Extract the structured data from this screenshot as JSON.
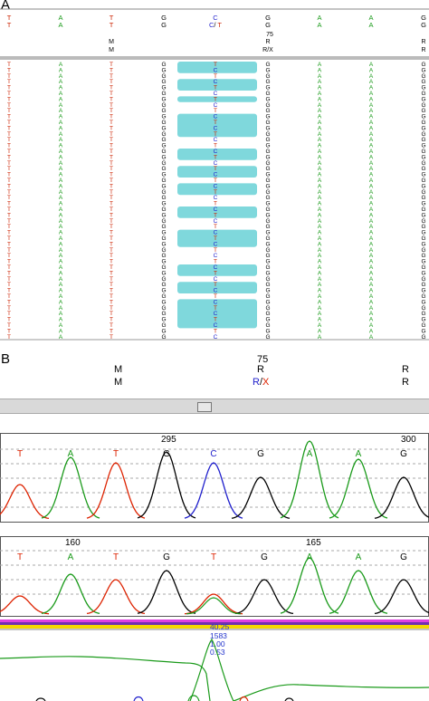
{
  "panels": {
    "a": "A",
    "b": "B"
  },
  "alignment": {
    "header_rows": [
      {
        "cols": [
          "T",
          "A",
          "T",
          "G",
          "C",
          "G",
          "A",
          "A",
          "G"
        ]
      },
      {
        "cols": [
          "T",
          "A",
          "T",
          "G",
          "C/ T",
          "G",
          "A",
          "A",
          "G"
        ]
      }
    ],
    "position_label": "75",
    "ambiguity_rows": [
      {
        "col3": "M",
        "col6": "R",
        "col9": "R"
      },
      {
        "col3": "M",
        "col6": "R/X",
        "col9": "R"
      }
    ],
    "column_bases": [
      "T",
      "A",
      "T",
      "G",
      "C",
      "G",
      "A",
      "A",
      "G"
    ],
    "column_colors": [
      "#cc2200",
      "#1a9a1a",
      "#cc2200",
      "#000000",
      "#1f1fcc",
      "#000000",
      "#1a9a1a",
      "#1a9a1a",
      "#000000"
    ],
    "variable_column_bases": [
      "T",
      "C",
      "T",
      "C",
      "T",
      "C",
      "T",
      "C",
      "T",
      "C",
      "T",
      "C",
      "T",
      "C",
      "T",
      "C",
      "T",
      "C",
      "T",
      "C",
      "T",
      "C",
      "T",
      "C",
      "T",
      "C",
      "T",
      "C",
      "T",
      "C",
      "T",
      "C",
      "T",
      "C",
      "T",
      "C",
      "T",
      "C",
      "T",
      "C",
      "T",
      "C",
      "T",
      "C",
      "T",
      "C",
      "T",
      "C"
    ],
    "highlight_color": "#7fd8dc"
  },
  "panel_b": {
    "position_label": "75",
    "row1": {
      "m": "M",
      "r": "R",
      "r_right": "R"
    },
    "row2": {
      "m": "M",
      "rx_r": "R",
      "rx_slash": "/",
      "rx_x": "X",
      "r_right": "R"
    },
    "trace1": {
      "position_left": "295",
      "position_right": "300",
      "bases": [
        {
          "b": "T",
          "color": "#dd2200"
        },
        {
          "b": "A",
          "color": "#1a9a1a"
        },
        {
          "b": "T",
          "color": "#dd2200"
        },
        {
          "b": "G",
          "color": "#000000"
        },
        {
          "b": "C",
          "color": "#1f1fcc"
        },
        {
          "b": "G",
          "color": "#000000"
        },
        {
          "b": "A",
          "color": "#1a9a1a"
        },
        {
          "b": "A",
          "color": "#1a9a1a"
        },
        {
          "b": "G",
          "color": "#000000"
        }
      ]
    },
    "trace2": {
      "position_left": "160",
      "position_right": "165",
      "bases": [
        {
          "b": "T",
          "color": "#dd2200"
        },
        {
          "b": "A",
          "color": "#1a9a1a"
        },
        {
          "b": "T",
          "color": "#dd2200"
        },
        {
          "b": "G",
          "color": "#000000"
        },
        {
          "b": "T",
          "color": "#dd2200"
        },
        {
          "b": "G",
          "color": "#000000"
        },
        {
          "b": "A",
          "color": "#1a9a1a"
        },
        {
          "b": "A",
          "color": "#1a9a1a"
        },
        {
          "b": "G",
          "color": "#000000"
        }
      ]
    },
    "stats": {
      "v1": "40.25",
      "v2": "1583",
      "v3": "1.00",
      "v4": "0.53"
    }
  }
}
